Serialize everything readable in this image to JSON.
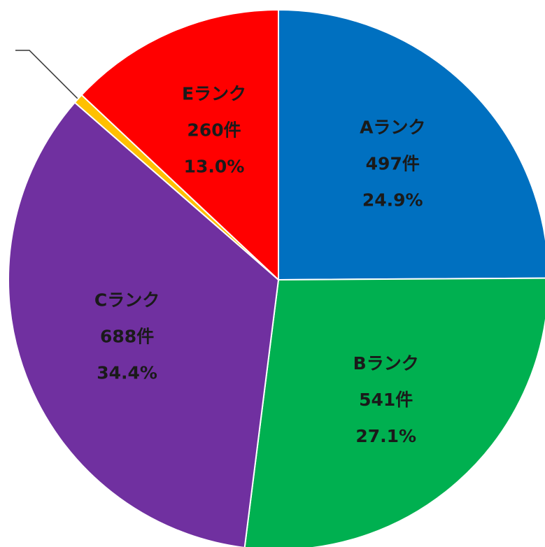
{
  "chart_data": {
    "type": "pie",
    "categories": [
      "Aランク",
      "Bランク",
      "Cランク",
      null,
      "Eランク"
    ],
    "values": [
      24.9,
      27.1,
      34.4,
      0.6,
      13.0
    ],
    "value_labels": [
      "24.9%",
      "27.1%",
      "34.4%",
      null,
      "13.0%"
    ],
    "count_labels": [
      "497件",
      "541件",
      "688件",
      null,
      "260件"
    ],
    "colors": [
      "#0070c0",
      "#00b050",
      "#7030a0",
      "#ffc000",
      "#ff0000"
    ]
  }
}
